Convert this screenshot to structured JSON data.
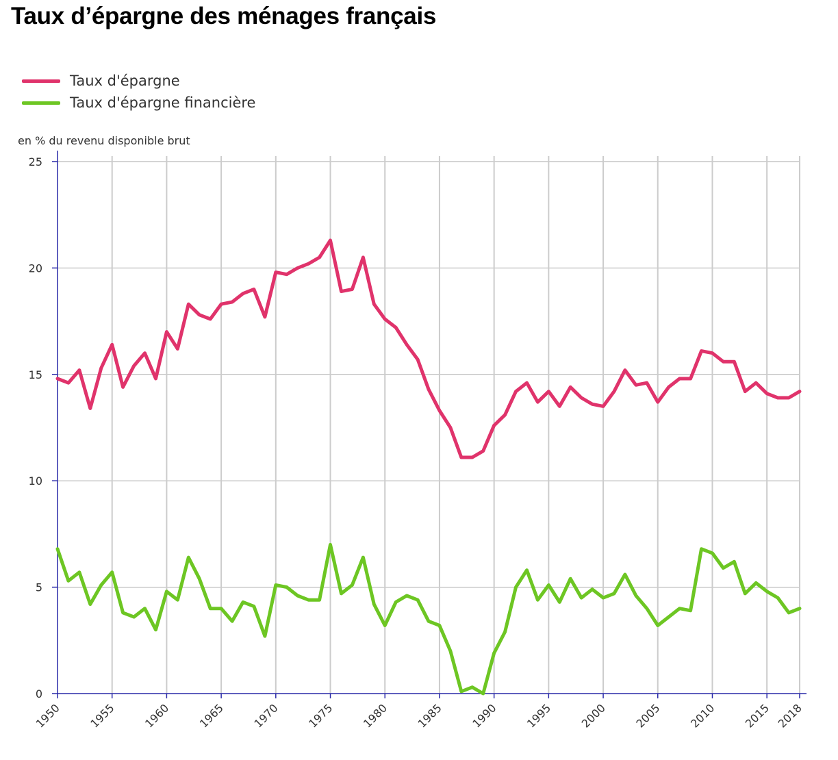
{
  "title": "Taux d’épargne des ménages français",
  "chart_data": {
    "type": "line",
    "title": "Taux d’épargne des ménages français",
    "ylabel": "en % du revenu disponible brut",
    "xlabel": "",
    "xlim": [
      1950,
      2018
    ],
    "ylim": [
      0,
      25
    ],
    "yticks": [
      0,
      5,
      10,
      15,
      20,
      25
    ],
    "xticks": [
      1950,
      1955,
      1960,
      1965,
      1970,
      1975,
      1980,
      1985,
      1990,
      1995,
      2000,
      2005,
      2010,
      2015,
      2018
    ],
    "grid": true,
    "legend_position": "top-left",
    "x": [
      1950,
      1951,
      1952,
      1953,
      1954,
      1955,
      1956,
      1957,
      1958,
      1959,
      1960,
      1961,
      1962,
      1963,
      1964,
      1965,
      1966,
      1967,
      1968,
      1969,
      1970,
      1971,
      1972,
      1973,
      1974,
      1975,
      1976,
      1977,
      1978,
      1979,
      1980,
      1981,
      1982,
      1983,
      1984,
      1985,
      1986,
      1987,
      1988,
      1989,
      1990,
      1991,
      1992,
      1993,
      1994,
      1995,
      1996,
      1997,
      1998,
      1999,
      2000,
      2001,
      2002,
      2003,
      2004,
      2005,
      2006,
      2007,
      2008,
      2009,
      2010,
      2011,
      2012,
      2013,
      2014,
      2015,
      2016,
      2017,
      2018
    ],
    "series": [
      {
        "name": "Taux d'épargne",
        "color": "#e0336b",
        "values": [
          14.8,
          14.6,
          15.2,
          13.4,
          15.3,
          16.4,
          14.4,
          15.4,
          16.0,
          14.8,
          17.0,
          16.2,
          18.3,
          17.8,
          17.6,
          18.3,
          18.4,
          18.8,
          19.0,
          17.7,
          19.8,
          19.7,
          20.0,
          20.2,
          20.5,
          21.3,
          18.9,
          19.0,
          20.5,
          18.3,
          17.6,
          17.2,
          16.4,
          15.7,
          14.3,
          13.3,
          12.5,
          11.1,
          11.1,
          11.4,
          12.6,
          13.1,
          14.2,
          14.6,
          13.7,
          14.2,
          13.5,
          14.4,
          13.9,
          13.6,
          13.5,
          14.2,
          15.2,
          14.5,
          14.6,
          13.7,
          14.4,
          14.8,
          14.8,
          16.1,
          16.0,
          15.6,
          15.6,
          14.2,
          14.6,
          14.1,
          13.9,
          13.9,
          14.2
        ]
      },
      {
        "name": "Taux d'épargne financière",
        "color": "#6dc623",
        "values": [
          6.8,
          5.3,
          5.7,
          4.2,
          5.1,
          5.7,
          3.8,
          3.6,
          4.0,
          3.0,
          4.8,
          4.4,
          6.4,
          5.4,
          4.0,
          4.0,
          3.4,
          4.3,
          4.1,
          2.7,
          5.1,
          5.0,
          4.6,
          4.4,
          4.4,
          7.0,
          4.7,
          5.1,
          6.4,
          4.2,
          3.2,
          4.3,
          4.6,
          4.4,
          3.4,
          3.2,
          2.0,
          0.1,
          0.3,
          0.0,
          1.9,
          2.9,
          5.0,
          5.8,
          4.4,
          5.1,
          4.3,
          5.4,
          4.5,
          4.9,
          4.5,
          4.7,
          5.6,
          4.6,
          4.0,
          3.2,
          3.6,
          4.0,
          3.9,
          6.8,
          6.6,
          5.9,
          6.2,
          4.7,
          5.2,
          4.8,
          4.5,
          3.8,
          4.0
        ]
      }
    ]
  }
}
